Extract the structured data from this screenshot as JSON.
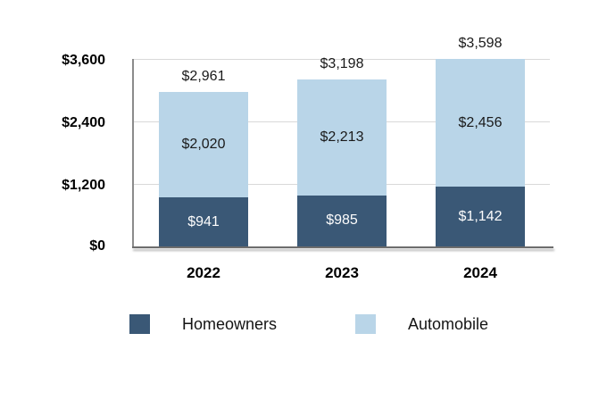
{
  "chart_data": {
    "type": "bar",
    "stacked": true,
    "title": "",
    "categories": [
      "2022",
      "2023",
      "2024"
    ],
    "series": [
      {
        "name": "Homeowners",
        "color": "#3a5876",
        "label_color": "#fdfdfd",
        "values": [
          941,
          985,
          1142
        ],
        "labels": [
          "$941",
          "$985",
          "$1,142"
        ]
      },
      {
        "name": "Automobile",
        "color": "#b9d5e8",
        "label_color": "#1a1a1a",
        "values": [
          2020,
          2213,
          2456
        ],
        "labels": [
          "$2,020",
          "$2,213",
          "$2,456"
        ]
      }
    ],
    "totals": [
      2961,
      3198,
      3598
    ],
    "total_labels": [
      "$2,961",
      "$3,198",
      "$3,598"
    ],
    "y_axis": {
      "min": 0,
      "max": 3600,
      "tick_step": 1200,
      "ticks": [
        "$0",
        "$1,200",
        "$2,400",
        "$3,600"
      ],
      "gridlines": true
    },
    "legend": {
      "position": "bottom",
      "items": [
        "Homeowners",
        "Automobile"
      ]
    },
    "colors": {
      "gridline": "#d9d9d9",
      "axis": "#6d6d6d",
      "tick_text": "#000000"
    }
  }
}
